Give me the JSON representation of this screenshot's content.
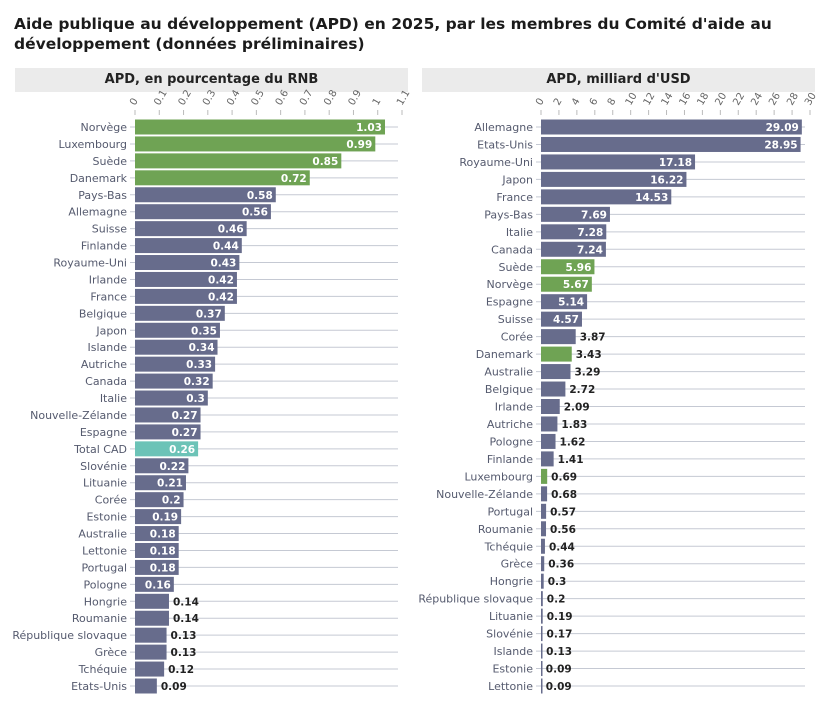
{
  "title": "Aide publique au développement (APD) en 2025, par les membres du Comité d'aide au développement (données préliminaires)",
  "colors": {
    "highlight": "#6fa354",
    "default": "#676c8c",
    "total": "#6cc3b7"
  },
  "chart_data": [
    {
      "type": "bar",
      "orientation": "horizontal",
      "title": "APD, en pourcentage du RNB",
      "xlim": [
        0,
        1.1
      ],
      "ticks": [
        "0",
        "0.1",
        "0.2",
        "0.3",
        "0.4",
        "0.5",
        "0.6",
        "0.7",
        "0.8",
        "0.9",
        "1",
        "1.1"
      ],
      "grid": true,
      "categories": [
        "Norvège",
        "Luxembourg",
        "Suède",
        "Danemark",
        "Pays-Bas",
        "Allemagne",
        "Suisse",
        "Finlande",
        "Royaume-Uni",
        "Irlande",
        "France",
        "Belgique",
        "Japon",
        "Islande",
        "Autriche",
        "Canada",
        "Italie",
        "Nouvelle-Zélande",
        "Espagne",
        "Total CAD",
        "Slovénie",
        "Lituanie",
        "Corée",
        "Estonie",
        "Australie",
        "Lettonie",
        "Portugal",
        "Pologne",
        "Hongrie",
        "Roumanie",
        "République slovaque",
        "Grèce",
        "Tchéquie",
        "Etats-Unis"
      ],
      "values": [
        1.03,
        0.99,
        0.85,
        0.72,
        0.58,
        0.56,
        0.46,
        0.44,
        0.43,
        0.42,
        0.42,
        0.37,
        0.35,
        0.34,
        0.33,
        0.32,
        0.3,
        0.27,
        0.27,
        0.26,
        0.22,
        0.21,
        0.2,
        0.19,
        0.18,
        0.18,
        0.18,
        0.16,
        0.14,
        0.14,
        0.13,
        0.13,
        0.12,
        0.09
      ],
      "colors": [
        "highlight",
        "highlight",
        "highlight",
        "highlight",
        "default",
        "default",
        "default",
        "default",
        "default",
        "default",
        "default",
        "default",
        "default",
        "default",
        "default",
        "default",
        "default",
        "default",
        "default",
        "total",
        "default",
        "default",
        "default",
        "default",
        "default",
        "default",
        "default",
        "default",
        "default",
        "default",
        "default",
        "default",
        "default",
        "default"
      ]
    },
    {
      "type": "bar",
      "orientation": "horizontal",
      "title": "APD, milliard d'USD",
      "xlim": [
        0,
        30
      ],
      "ticks": [
        "0",
        "2",
        "4",
        "6",
        "8",
        "10",
        "12",
        "14",
        "16",
        "18",
        "20",
        "22",
        "24",
        "26",
        "28",
        "30"
      ],
      "grid": true,
      "categories": [
        "Allemagne",
        "Etats-Unis",
        "Royaume-Uni",
        "Japon",
        "France",
        "Pays-Bas",
        "Italie",
        "Canada",
        "Suède",
        "Norvège",
        "Espagne",
        "Suisse",
        "Corée",
        "Danemark",
        "Australie",
        "Belgique",
        "Irlande",
        "Autriche",
        "Pologne",
        "Finlande",
        "Luxembourg",
        "Nouvelle-Zélande",
        "Portugal",
        "Roumanie",
        "Tchéquie",
        "Grèce",
        "Hongrie",
        "République slovaque",
        "Lituanie",
        "Slovénie",
        "Islande",
        "Estonie",
        "Lettonie"
      ],
      "values": [
        29.09,
        28.95,
        17.18,
        16.22,
        14.53,
        7.69,
        7.28,
        7.24,
        5.96,
        5.67,
        5.14,
        4.57,
        3.87,
        3.43,
        3.29,
        2.72,
        2.09,
        1.83,
        1.62,
        1.41,
        0.69,
        0.68,
        0.57,
        0.56,
        0.44,
        0.36,
        0.3,
        0.2,
        0.19,
        0.17,
        0.13,
        0.09,
        0.09
      ],
      "colors": [
        "default",
        "default",
        "default",
        "default",
        "default",
        "default",
        "default",
        "default",
        "highlight",
        "highlight",
        "default",
        "default",
        "default",
        "highlight",
        "default",
        "default",
        "default",
        "default",
        "default",
        "default",
        "highlight",
        "default",
        "default",
        "default",
        "default",
        "default",
        "default",
        "default",
        "default",
        "default",
        "default",
        "default",
        "default"
      ]
    }
  ]
}
